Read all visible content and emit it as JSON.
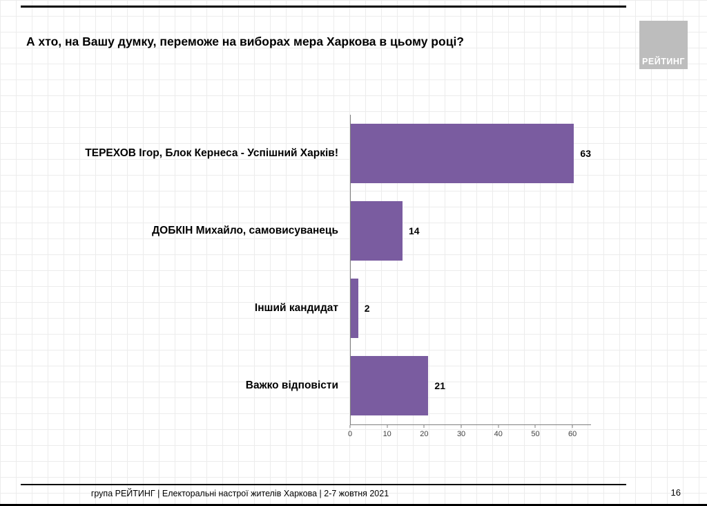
{
  "header": {
    "title": "А хто, на Вашу думку, переможе на виборах мера Харкова в цьому році?",
    "logo_text": "РЕЙТИНГ"
  },
  "footer": {
    "text": "група РЕЙТИНГ  | Електоральні настрої жителів Харкова | 2-7 жовтня 2021",
    "page_number": "16"
  },
  "chart_data": {
    "type": "bar",
    "orientation": "horizontal",
    "title": "А хто, на Вашу думку, переможе на виборах мера Харкова в цьому році?",
    "categories": [
      "ТЕРЕХОВ Ігор, Блок Кернеса - Успішний Харків!",
      "ДОБКІН Михайло, самовисуванець",
      "Інший кандидат",
      "Важко відповісти"
    ],
    "values": [
      63,
      14,
      2,
      21
    ],
    "x_ticks": [
      0,
      10,
      20,
      30,
      40,
      50,
      60
    ],
    "xlim": [
      0,
      65
    ],
    "bar_color": "#7a5ca0",
    "value_labels": true,
    "grid": false,
    "legend": "none"
  }
}
